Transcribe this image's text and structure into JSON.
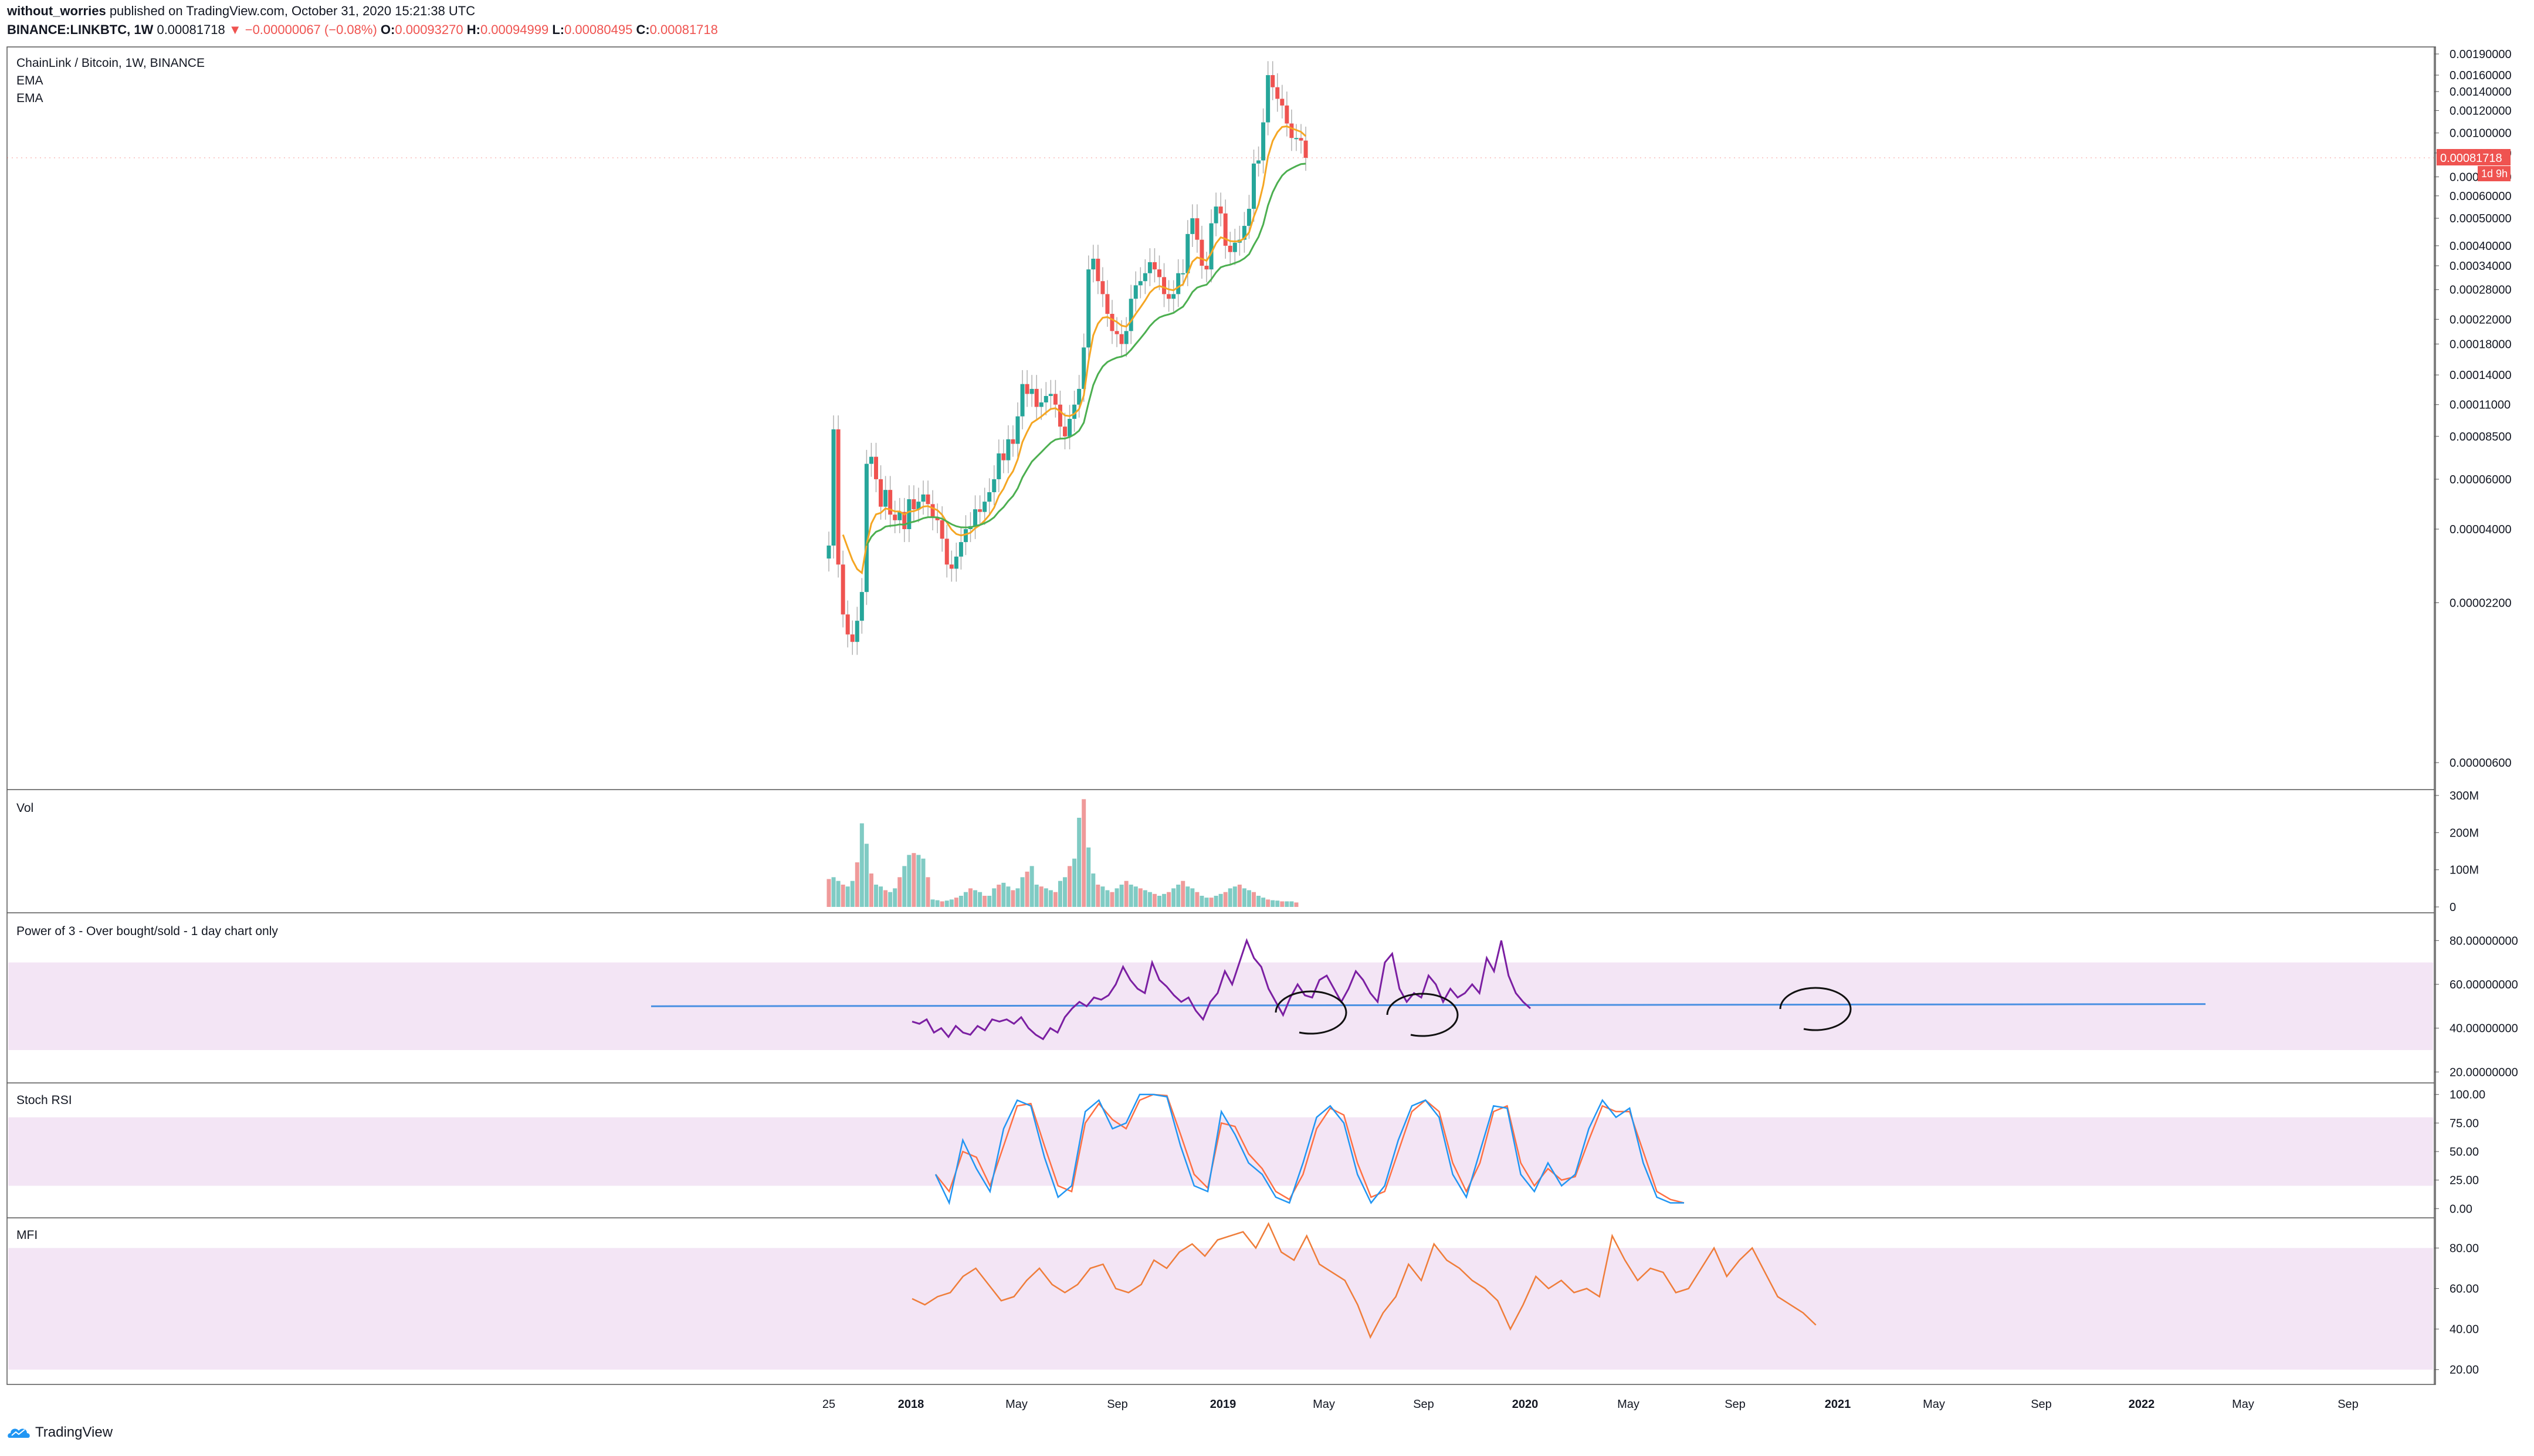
{
  "header": {
    "user": "without_worries",
    "published_text": "published on TradingView.com, October 31, 2020 15:21:38 UTC",
    "symbol_full": "BINANCE:LINKBTC, 1W",
    "price": "0.00081718",
    "change_arrow": "▼",
    "change_text": "−0.00000067 (−0.08%)",
    "o_label": "O:",
    "o_value": "0.00093270",
    "h_label": "H:",
    "h_value": "0.00094999",
    "l_label": "L:",
    "l_value": "0.00080495",
    "c_label": "C:",
    "c_value": "0.00081718"
  },
  "legends": {
    "main_title": "ChainLink / Bitcoin, 1W, BINANCE",
    "ema1": "EMA",
    "ema2": "EMA",
    "vol": "Vol",
    "power3": "Power of 3 - Over bought/sold - 1 day chart only",
    "stoch": "Stoch RSI",
    "mfi": "MFI"
  },
  "price_tag": {
    "value": "0.00081718",
    "countdown": "1d 9h",
    "color": "#ef5350"
  },
  "footer": {
    "brand": "TradingView"
  },
  "colors": {
    "up": "#26a69a",
    "down": "#ef5350",
    "ema_fast": "#f5a623",
    "ema_slow": "#4caf50",
    "power3": "#7b1fa2",
    "hline": "#4a90e2",
    "stoch_k": "#2196f3",
    "stoch_d": "#ff7043",
    "mfi": "#ef7d3a",
    "band": "#f3e5f5"
  },
  "chart_data": [
    {
      "type": "candlestick",
      "title": "ChainLink / Bitcoin, 1W, BINANCE",
      "yscale": "log",
      "x_ticks": [
        "25",
        "2018",
        "May",
        "Sep",
        "2019",
        "May",
        "Sep",
        "2020",
        "May",
        "Sep",
        "2021",
        "May",
        "Sep",
        "2022",
        "May",
        "Sep"
      ],
      "y_ticks": [
        "0.00190000",
        "0.00160000",
        "0.00140000",
        "0.00120000",
        "0.00100000",
        "0.00085000",
        "0.00070000",
        "0.00060000",
        "0.00050000",
        "0.00040000",
        "0.00034000",
        "0.00028000",
        "0.00022000",
        "0.00018000",
        "0.00014000",
        "0.00011000",
        "0.00008500",
        "0.00006000",
        "0.00004000",
        "0.00002200",
        "0.00000600"
      ],
      "ohlc_weekly_close_path_start": "2017-09-25",
      "close": [
        3.5e-05,
        9e-05,
        3e-05,
        2e-05,
        1.7e-05,
        1.6e-05,
        1.9e-05,
        2.4e-05,
        6.8e-05,
        7.2e-05,
        6e-05,
        4.8e-05,
        5.5e-05,
        4.5e-05,
        4.3e-05,
        4.6e-05,
        4e-05,
        5.1e-05,
        4.7e-05,
        5e-05,
        5.3e-05,
        4.9e-05,
        4.4e-05,
        4.3e-05,
        3.7e-05,
        3e-05,
        2.9e-05,
        3.2e-05,
        3.6e-05,
        4e-05,
        4.1e-05,
        4.7e-05,
        4.6e-05,
        5e-05,
        5.4e-05,
        6e-05,
        7.4e-05,
        7e-05,
        8.3e-05,
        8e-05,
        0.0001,
        0.00013,
        0.00012,
        0.000125,
        0.000108,
        0.000112,
        0.000118,
        0.00012,
        0.00011,
        9.2e-05,
        8.5e-05,
        9.8e-05,
        0.00011,
        0.000125,
        0.000175,
        0.00033,
        0.00036,
        0.0003,
        0.00027,
        0.00023,
        0.0002,
        0.000195,
        0.00018,
        0.0002,
        0.00026,
        0.00029,
        0.0003,
        0.00032,
        0.00035,
        0.00033,
        0.00031,
        0.00027,
        0.00026,
        0.00027,
        0.00032,
        0.00032,
        0.00044,
        0.0005,
        0.00042,
        0.00034,
        0.00033,
        0.00048,
        0.00055,
        0.00052,
        0.0004,
        0.00038,
        0.00041,
        0.00042,
        0.00047,
        0.00054,
        0.00078,
        0.0008,
        0.00109,
        0.0016,
        0.00145,
        0.00132,
        0.00125,
        0.00108,
        0.00096,
        0.00096,
        0.00094,
        0.000817
      ],
      "series": [
        {
          "name": "EMA",
          "values": []
        },
        {
          "name": "EMA",
          "values": []
        }
      ]
    },
    {
      "type": "bar",
      "title": "Vol",
      "y_ticks": [
        "300M",
        "200M",
        "100M",
        "0"
      ],
      "values": [
        75,
        80,
        70,
        60,
        55,
        70,
        120,
        225,
        170,
        90,
        60,
        55,
        45,
        40,
        50,
        80,
        110,
        140,
        145,
        140,
        130,
        80,
        20,
        18,
        15,
        17,
        20,
        25,
        30,
        40,
        50,
        45,
        40,
        30,
        30,
        50,
        60,
        65,
        55,
        45,
        50,
        80,
        95,
        110,
        60,
        55,
        50,
        45,
        40,
        70,
        80,
        110,
        130,
        240,
        290,
        160,
        90,
        60,
        55,
        45,
        40,
        50,
        60,
        70,
        60,
        55,
        50,
        45,
        40,
        35,
        30,
        35,
        40,
        50,
        60,
        70,
        55,
        50,
        40,
        30,
        25,
        25,
        30,
        35,
        40,
        50,
        55,
        60,
        50,
        45,
        40,
        30,
        25,
        20,
        18,
        17,
        15,
        15,
        15,
        12
      ]
    },
    {
      "type": "line",
      "title": "Power of 3 - Over bought/sold - 1 day chart only",
      "y_ticks": [
        "80.00000000",
        "60.00000000",
        "40.00000000",
        "20.00000000"
      ],
      "values": [
        43,
        42,
        44,
        38,
        40,
        36,
        41,
        38,
        37,
        41,
        39,
        44,
        43,
        44,
        42,
        45,
        40,
        37,
        35,
        40,
        38,
        45,
        49,
        52,
        50,
        54,
        53,
        55,
        60,
        68,
        62,
        58,
        56,
        70,
        62,
        59,
        55,
        52,
        54,
        48,
        44,
        52,
        56,
        66,
        60,
        70,
        80,
        72,
        68,
        58,
        52,
        46,
        54,
        60,
        55,
        54,
        62,
        64,
        58,
        52,
        58,
        66,
        62,
        56,
        52,
        70,
        74,
        58,
        52,
        56,
        54,
        64,
        60,
        52,
        58,
        54,
        56,
        60,
        56,
        72,
        66,
        80,
        64,
        56,
        52,
        49
      ]
    },
    {
      "type": "line",
      "title": "Stoch RSI",
      "y_ticks": [
        "100.00",
        "75.00",
        "50.00",
        "25.00",
        "0.00"
      ],
      "series": [
        {
          "name": "",
          "values": [
            30,
            5,
            60,
            35,
            15,
            70,
            95,
            90,
            45,
            10,
            20,
            85,
            95,
            70,
            75,
            100,
            100,
            98,
            55,
            20,
            15,
            85,
            65,
            40,
            30,
            10,
            5,
            40,
            80,
            90,
            75,
            30,
            5,
            20,
            60,
            90,
            95,
            80,
            30,
            10,
            50,
            90,
            88,
            30,
            15,
            40,
            20,
            30,
            70,
            95,
            80,
            88,
            40,
            10,
            5,
            5
          ]
        },
        {
          "name": "",
          "values": [
            30,
            15,
            50,
            45,
            20,
            55,
            90,
            92,
            55,
            20,
            15,
            75,
            92,
            78,
            70,
            95,
            100,
            99,
            65,
            30,
            18,
            75,
            72,
            48,
            35,
            15,
            8,
            30,
            70,
            88,
            82,
            40,
            10,
            15,
            50,
            85,
            95,
            85,
            40,
            15,
            40,
            85,
            90,
            40,
            20,
            35,
            25,
            28,
            60,
            90,
            85,
            85,
            50,
            15,
            8,
            5
          ]
        }
      ]
    },
    {
      "type": "line",
      "title": "MFI",
      "y_ticks": [
        "80.00",
        "60.00",
        "40.00",
        "20.00"
      ],
      "values": [
        55,
        52,
        56,
        58,
        66,
        70,
        62,
        54,
        56,
        64,
        70,
        62,
        58,
        62,
        70,
        72,
        60,
        58,
        62,
        74,
        70,
        78,
        82,
        76,
        84,
        86,
        88,
        80,
        92,
        78,
        74,
        86,
        72,
        68,
        64,
        52,
        36,
        48,
        56,
        72,
        64,
        82,
        74,
        70,
        64,
        60,
        54,
        40,
        52,
        66,
        60,
        64,
        58,
        60,
        56,
        86,
        74,
        64,
        70,
        68,
        58,
        60,
        70,
        80,
        66,
        74,
        80,
        68,
        56,
        52,
        48,
        42
      ]
    }
  ]
}
